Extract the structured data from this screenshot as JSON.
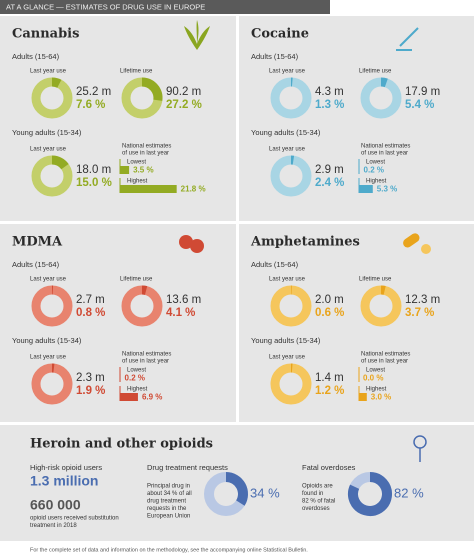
{
  "header": {
    "title": "AT A GLANCE — ESTIMATES OF DRUG USE IN EUROPE"
  },
  "panels": [
    {
      "title": "Cannabis",
      "color": "#c3cf6a",
      "accent": "#93ab23",
      "adults_label": "Adults (15-64)",
      "last_year_label": "Last year use",
      "last_year": {
        "count": "25.2 m",
        "pct": {
          "value": 7.6,
          "label": "7.6 %"
        }
      },
      "lifetime_label": "Lifetime use",
      "lifetime": {
        "count": "90.2 m",
        "pct": {
          "value": 27.2,
          "label": "27.2 %"
        }
      },
      "young_label": "Young adults (15-34)",
      "young_last_year_label": "Last year use",
      "young_last_year": {
        "count": "18.0 m",
        "pct": {
          "value": 15.0,
          "label": "15.0 %"
        }
      },
      "national_label": [
        "National estimates",
        "of use in last year"
      ],
      "lowest_label": "Lowest",
      "lowest": {
        "value": 3.5,
        "label": "3.5 %"
      },
      "highest_label": "Highest",
      "highest": {
        "value": 21.8,
        "label": "21.8 %"
      }
    },
    {
      "title": "Cocaine",
      "color": "#a8d5e4",
      "accent": "#4eaacb",
      "adults_label": "Adults (15-64)",
      "last_year_label": "Last year use",
      "last_year": {
        "count": "4.3 m",
        "pct": {
          "value": 1.3,
          "label": "1.3 %"
        }
      },
      "lifetime_label": "Lifetime use",
      "lifetime": {
        "count": "17.9 m",
        "pct": {
          "value": 5.4,
          "label": "5.4 %"
        }
      },
      "young_label": "Young adults (15-34)",
      "young_last_year_label": "Last year use",
      "young_last_year": {
        "count": "2.9 m",
        "pct": {
          "value": 2.4,
          "label": "2.4 %"
        }
      },
      "national_label": [
        "National estimates",
        "of use in last year"
      ],
      "lowest_label": "Lowest",
      "lowest": {
        "value": 0.2,
        "label": "0.2 %"
      },
      "highest_label": "Highest",
      "highest": {
        "value": 5.3,
        "label": "5.3 %"
      }
    },
    {
      "title": "MDMA",
      "color": "#e8836e",
      "accent": "#d04a34",
      "adults_label": "Adults (15-64)",
      "last_year_label": "Last year use",
      "last_year": {
        "count": "2.7 m",
        "pct": {
          "value": 0.8,
          "label": "0.8 %"
        }
      },
      "lifetime_label": "Lifetime use",
      "lifetime": {
        "count": "13.6 m",
        "pct": {
          "value": 4.1,
          "label": "4.1 %"
        }
      },
      "young_label": "Young adults (15-34)",
      "young_last_year_label": "Last year use",
      "young_last_year": {
        "count": "2.3 m",
        "pct": {
          "value": 1.9,
          "label": "1.9 %"
        }
      },
      "national_label": [
        "National estimates",
        "of use in last year"
      ],
      "lowest_label": "Lowest",
      "lowest": {
        "value": 0.2,
        "label": "0.2 %"
      },
      "highest_label": "Highest",
      "highest": {
        "value": 6.9,
        "label": "6.9 %"
      }
    },
    {
      "title": "Amphetamines",
      "color": "#f5c65c",
      "accent": "#e9a41c",
      "adults_label": "Adults (15-64)",
      "last_year_label": "Last year use",
      "last_year": {
        "count": "2.0 m",
        "pct": {
          "value": 0.6,
          "label": "0.6 %"
        }
      },
      "lifetime_label": "Lifetime use",
      "lifetime": {
        "count": "12.3 m",
        "pct": {
          "value": 3.7,
          "label": "3.7 %"
        }
      },
      "young_label": "Young adults (15-34)",
      "young_last_year_label": "Last year use",
      "young_last_year": {
        "count": "1.4 m",
        "pct": {
          "value": 1.2,
          "label": "1.2 %"
        }
      },
      "national_label": [
        "National estimates",
        "of use in last year"
      ],
      "lowest_label": "Lowest",
      "lowest": {
        "value": 0.0,
        "label": "0.0 %"
      },
      "highest_label": "Highest",
      "highest": {
        "value": 3.0,
        "label": "3.0 %"
      }
    }
  ],
  "heroin": {
    "title": "Heroin and other opioids",
    "color": "#4a6db0",
    "ring": "#b9c8e4",
    "high_risk_label": "High-risk opioid users",
    "high_risk_value": "1.3 million",
    "substitution_value": "660 000",
    "substitution_text": [
      "opioid users received substitution",
      "treatment in 2018"
    ],
    "treatment_label": "Drug treatment requests",
    "treatment_text": [
      "Principal drug in",
      "about 34 % of all",
      "drug treatment",
      "requests in the",
      "European Union"
    ],
    "treatment_pct": {
      "value": 34,
      "label": "34 %"
    },
    "overdose_label": "Fatal overdoses",
    "overdose_text": [
      "Opioids are",
      "found in",
      "82 % of fatal",
      "overdoses"
    ],
    "overdose_pct": {
      "value": 82,
      "label": "82 %"
    }
  },
  "footer": {
    "text": "For the complete set of data and information on the methodology, see the accompanying online Statistical Bulletin."
  }
}
